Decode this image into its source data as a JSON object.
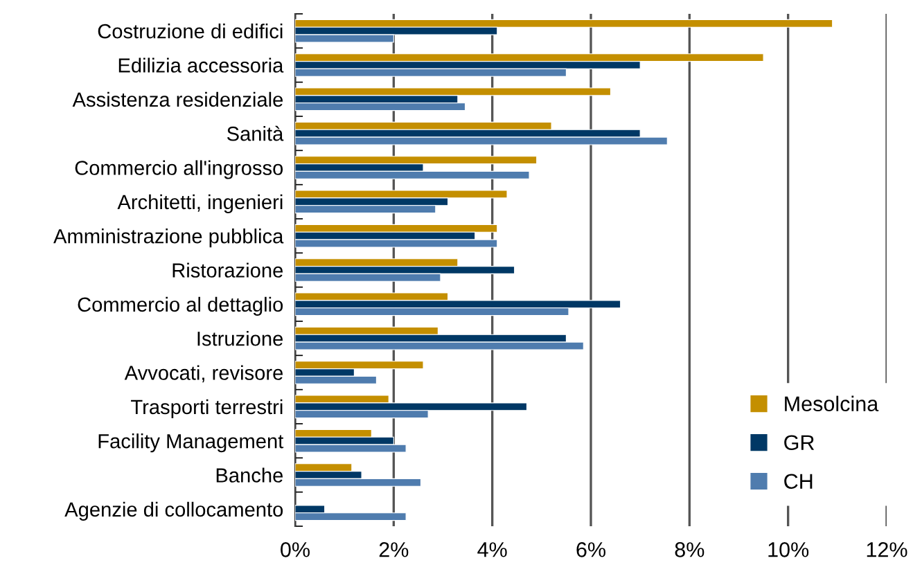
{
  "chart_data": {
    "type": "bar",
    "orientation": "horizontal",
    "categories": [
      "Costruzione di edifici",
      "Edilizia accessoria",
      "Assistenza residenziale",
      "Sanità",
      "Commercio all'ingrosso",
      "Architetti, ingenieri",
      "Amministrazione pubblica",
      "Ristorazione",
      "Commercio al dettaglio",
      "Istruzione",
      "Avvocati, revisore",
      "Trasporti terrestri",
      "Facility Management",
      "Banche",
      "Agenzie di collocamento"
    ],
    "series": [
      {
        "name": "Mesolcina",
        "color": "#c48f00",
        "values": [
          10.9,
          9.5,
          6.4,
          5.2,
          4.9,
          4.3,
          4.1,
          3.3,
          3.1,
          2.9,
          2.6,
          1.9,
          1.55,
          1.15,
          null
        ]
      },
      {
        "name": "GR",
        "color": "#003865",
        "values": [
          4.1,
          7.0,
          3.3,
          7.0,
          2.6,
          3.1,
          3.65,
          4.45,
          6.6,
          5.5,
          1.2,
          4.7,
          2.0,
          1.35,
          0.6
        ]
      },
      {
        "name": "CH",
        "color": "#4f7cae",
        "values": [
          2.0,
          5.5,
          3.45,
          7.55,
          4.75,
          2.85,
          4.1,
          2.95,
          5.55,
          5.85,
          1.65,
          2.7,
          2.25,
          2.55,
          2.25
        ]
      }
    ],
    "xlim": [
      0,
      12
    ],
    "xticks": [
      {
        "value": 0,
        "label": "0%"
      },
      {
        "value": 2,
        "label": "2%"
      },
      {
        "value": 4,
        "label": "4%"
      },
      {
        "value": 6,
        "label": "6%"
      },
      {
        "value": 8,
        "label": "8%"
      },
      {
        "value": 10,
        "label": "10%"
      },
      {
        "value": 12,
        "label": "12%"
      }
    ],
    "grid": "x",
    "legend": "bottom right"
  }
}
